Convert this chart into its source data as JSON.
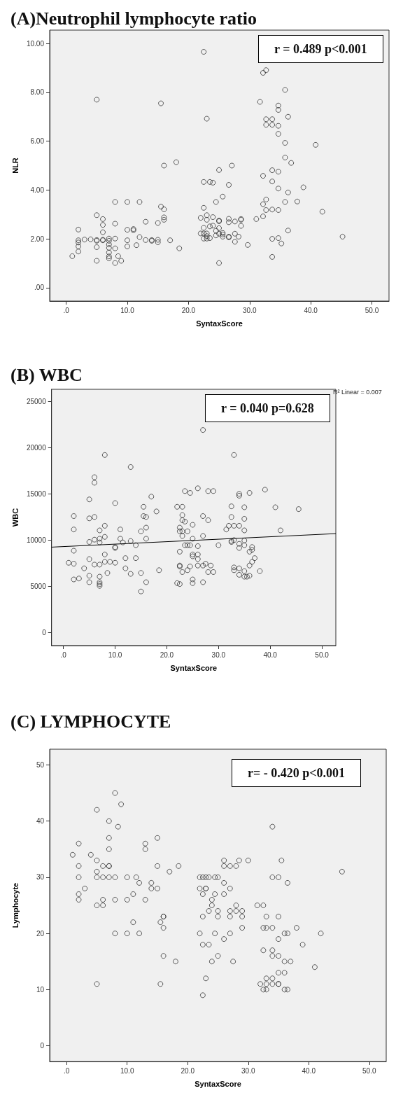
{
  "chart_data": [
    {
      "type": "scatter",
      "title": "(A)Neutrophil lymphocyte ratio",
      "xlabel": "SyntaxScore",
      "ylabel": "NLR",
      "marker": "circle",
      "annotations": [
        "r = 0.489 p<0.001"
      ],
      "xlim": [
        -2.7,
        52.8
      ],
      "ylim": [
        -0.55,
        10.55
      ],
      "xticks": [
        {
          "value": 0,
          "label": ".0"
        },
        {
          "value": 10,
          "label": "10.0"
        },
        {
          "value": 20,
          "label": "20.0"
        },
        {
          "value": 30,
          "label": "30.0"
        },
        {
          "value": 40,
          "label": "40.0"
        },
        {
          "value": 50,
          "label": "50.0"
        }
      ],
      "yticks": [
        {
          "value": 0,
          "label": ".00"
        },
        {
          "value": 2,
          "label": "2.00"
        },
        {
          "value": 4,
          "label": "4.00"
        },
        {
          "value": 6,
          "label": "6.00"
        },
        {
          "value": 8,
          "label": "8.00"
        },
        {
          "value": 10,
          "label": "10.00"
        }
      ],
      "series": [
        {
          "color": "#333333",
          "x": [
            22.5,
            5,
            15.5,
            23,
            18,
            16,
            25,
            22.5,
            23.5,
            24,
            8,
            10,
            12,
            24.5,
            15.5,
            16,
            22.5,
            5,
            22,
            23,
            23,
            24,
            25,
            25,
            6,
            16,
            16,
            13,
            15,
            6,
            8,
            2,
            6,
            10,
            11,
            11,
            22.5,
            23.5,
            24,
            25,
            24.5,
            25,
            22,
            22.5,
            23,
            23,
            22.5,
            23,
            23.5,
            24.5,
            2,
            2,
            2,
            2,
            3,
            4,
            5,
            5,
            6,
            6,
            7,
            7,
            7,
            7,
            7,
            7,
            7,
            8,
            10,
            12,
            13,
            14,
            14,
            15,
            15,
            17,
            5,
            8,
            10,
            11.5,
            18.5,
            1,
            8.5,
            5,
            8,
            9,
            25,
            32.2,
            32.7,
            35.8,
            31.7,
            34.7,
            34.7,
            36.3,
            32.7,
            33.7,
            32.7,
            33.7,
            34.7,
            34.7,
            35.8,
            40.8,
            35.8,
            36.8,
            27.1,
            33.7,
            34.7,
            32.2,
            33.7,
            26.6,
            38.8,
            34.7,
            36.3,
            25.6,
            32.7,
            32.2,
            35.8,
            37.8,
            32.7,
            33.7,
            34.7,
            41.9,
            26.6,
            26.6,
            27.6,
            28.6,
            28.6,
            28.6,
            31.1,
            32.2,
            25.6,
            25.6,
            25.6,
            26.6,
            26.6,
            27.6,
            28.2,
            27.6,
            29.7,
            36.3,
            33.7,
            34.7,
            35.2,
            45.2,
            33.7
          ],
          "values": [
            9.66,
            7.7,
            7.55,
            6.92,
            5.14,
            5.0,
            4.82,
            4.33,
            4.33,
            4.3,
            3.51,
            3.51,
            3.51,
            3.51,
            3.32,
            3.21,
            3.27,
            2.97,
            2.86,
            2.97,
            2.78,
            2.89,
            2.75,
            2.72,
            2.81,
            2.88,
            2.78,
            2.7,
            2.65,
            2.57,
            2.62,
            2.38,
            2.27,
            2.37,
            2.4,
            2.35,
            2.45,
            2.51,
            2.54,
            2.44,
            2.33,
            2.21,
            2.22,
            2.22,
            2.22,
            2.11,
            2.01,
            2.01,
            2.03,
            2.14,
            1.94,
            1.85,
            1.69,
            1.48,
            1.97,
            1.98,
            1.95,
            1.92,
            1.96,
            1.94,
            2.01,
            1.92,
            1.77,
            1.63,
            1.44,
            1.28,
            1.2,
            2.01,
            1.94,
            2.07,
            1.95,
            1.92,
            1.95,
            1.96,
            1.86,
            1.94,
            1.66,
            1.61,
            1.69,
            1.74,
            1.61,
            1.29,
            1.29,
            1.1,
            1.01,
            1.1,
            1.01,
            8.8,
            8.91,
            8.1,
            7.61,
            7.46,
            7.28,
            7.0,
            6.9,
            6.9,
            6.67,
            6.67,
            6.63,
            6.3,
            5.93,
            5.85,
            5.33,
            5.11,
            5.0,
            4.81,
            4.75,
            4.58,
            4.35,
            4.21,
            4.11,
            4.06,
            3.9,
            3.73,
            3.61,
            3.42,
            3.51,
            3.53,
            3.18,
            3.2,
            3.18,
            3.11,
            2.82,
            2.68,
            2.71,
            2.81,
            2.78,
            2.53,
            2.81,
            2.92,
            2.24,
            2.18,
            2.09,
            2.09,
            2.06,
            2.21,
            2.09,
            1.88,
            1.75,
            2.34,
            2.0,
            2.03,
            1.81,
            2.09,
            1.26
          ]
        }
      ]
    },
    {
      "type": "scatter",
      "title": "(B) WBC",
      "xlabel": "SyntaxScore",
      "ylabel": "WBC",
      "marker": "circle",
      "annotations": [
        "r = 0.040 p=0.628",
        "R² Linear = 0.007"
      ],
      "xlim": [
        -2.3,
        52.7
      ],
      "ylim": [
        -1400,
        26300
      ],
      "xticks": [
        {
          "value": 0,
          "label": ".0"
        },
        {
          "value": 10,
          "label": "10.0"
        },
        {
          "value": 20,
          "label": "20.0"
        },
        {
          "value": 30,
          "label": "30.0"
        },
        {
          "value": 40,
          "label": "40.0"
        },
        {
          "value": 50,
          "label": "50.0"
        }
      ],
      "yticks": [
        0,
        5000,
        10000,
        15000,
        20000,
        25000
      ],
      "series": [
        {
          "color": "#333333",
          "x": [
            27,
            8,
            13,
            6,
            6,
            5,
            10,
            17,
            23.5,
            24.5,
            26,
            28,
            29,
            15.5,
            18,
            22,
            23,
            2,
            5,
            6,
            15.5,
            16,
            23,
            23,
            23.5,
            27,
            28,
            2,
            8,
            7,
            11,
            15,
            16,
            22.5,
            22.5,
            23,
            24,
            23,
            25,
            27,
            5,
            6,
            7,
            7,
            8,
            11,
            11.5,
            13,
            16,
            25,
            2,
            10,
            10,
            14,
            23.5,
            24,
            24.5,
            26,
            30,
            22.5,
            25,
            25,
            26,
            26,
            8,
            5,
            12,
            14,
            1,
            2,
            6,
            7,
            8,
            9,
            10,
            4,
            22.5,
            22.5,
            24.5,
            26,
            27,
            27.5,
            28.5,
            24,
            23,
            28,
            29,
            12,
            13,
            15,
            18.5,
            8.5,
            2,
            3,
            5,
            5,
            7,
            7,
            7,
            7,
            16,
            15,
            22,
            22.5,
            25,
            25,
            27,
            33,
            39,
            36,
            34,
            34,
            32.5,
            35,
            41,
            45.5,
            32.5,
            35,
            32,
            33,
            34,
            31.5,
            35,
            42,
            32.5,
            33,
            32.5,
            34,
            35,
            34,
            35,
            36.5,
            36.5,
            36,
            37,
            36.5,
            36,
            33,
            33,
            34,
            35,
            34,
            35,
            35.5,
            36,
            38
          ],
          "values": [
            21900,
            19200,
            17900,
            16800,
            16200,
            14400,
            14000,
            14700,
            15300,
            15100,
            15600,
            15300,
            15300,
            13600,
            13100,
            13600,
            13600,
            12600,
            12350,
            12500,
            12600,
            12500,
            12700,
            12150,
            12000,
            12600,
            12150,
            11150,
            11550,
            11050,
            11150,
            10950,
            11350,
            11350,
            10950,
            10950,
            10950,
            10450,
            11650,
            10450,
            9800,
            10050,
            10150,
            9750,
            10350,
            10150,
            9750,
            9900,
            10150,
            10150,
            8850,
            9250,
            9150,
            9450,
            9450,
            9450,
            9450,
            9350,
            9450,
            8750,
            8450,
            8250,
            8450,
            7950,
            8450,
            7950,
            8050,
            8050,
            7550,
            7450,
            7350,
            7350,
            7650,
            7650,
            7550,
            6950,
            7250,
            7150,
            7150,
            7250,
            7250,
            7450,
            7250,
            6750,
            6550,
            6550,
            6550,
            6950,
            6350,
            6450,
            6750,
            6450,
            5750,
            5850,
            6150,
            5450,
            6050,
            5450,
            5250,
            5050,
            5450,
            4450,
            5350,
            5250,
            5750,
            5350,
            5450,
            19200,
            15450,
            15100,
            15000,
            14800,
            13650,
            13550,
            13550,
            13350,
            12500,
            12300,
            11550,
            11550,
            11550,
            11150,
            11050,
            11050,
            9800,
            10000,
            9900,
            9600,
            9950,
            9150,
            9450,
            9250,
            8950,
            8750,
            8050,
            7650,
            7250,
            7050,
            6750,
            6950,
            6650,
            6250,
            6050,
            6050,
            6150,
            6650
          ]
        },
        {
          "type": "line",
          "marker": "none",
          "color": "#000000",
          "x": [
            -2.3,
            52.7
          ],
          "values": [
            9240,
            10700
          ]
        }
      ]
    },
    {
      "type": "scatter",
      "title": "(C) LYMPHOCYTE",
      "xlabel": "SyntaxScore",
      "ylabel": "Lymphocyte",
      "marker": "circle",
      "annotations": [
        "r= - 0.420 p<0.001"
      ],
      "xlim": [
        -2.8,
        52.8
      ],
      "ylim": [
        -2.8,
        52.8
      ],
      "xticks": [
        {
          "value": 0,
          "label": ".0"
        },
        {
          "value": 10,
          "label": "10.0"
        },
        {
          "value": 20,
          "label": "20.0"
        },
        {
          "value": 30,
          "label": "30.0"
        },
        {
          "value": 40,
          "label": "40.0"
        },
        {
          "value": 50,
          "label": "50.0"
        }
      ],
      "yticks": [
        0,
        10,
        20,
        30,
        40,
        50
      ],
      "series": [
        {
          "color": "#333333",
          "x": [
            8,
            9,
            5,
            7,
            8.5,
            7,
            15,
            2,
            13,
            7,
            13,
            1,
            4,
            5,
            2,
            6,
            7,
            7,
            15,
            18.5,
            5,
            17,
            2,
            5,
            6,
            7,
            8,
            10,
            11.5,
            12,
            14,
            14,
            15,
            3,
            2,
            2,
            11,
            6,
            8,
            10,
            13,
            5,
            6,
            16,
            16,
            11,
            15.5,
            16,
            8,
            10,
            12,
            16,
            18,
            5,
            15.5,
            22,
            22.5,
            23,
            23.5,
            24.5,
            25,
            23,
            23,
            22,
            22.5,
            24.5,
            24,
            24,
            23.5,
            25,
            25,
            22.5,
            22,
            24.5,
            22.5,
            23.5,
            25,
            24,
            23,
            22.5,
            26,
            26,
            27,
            28,
            28.5,
            30,
            26,
            27,
            26,
            27,
            27,
            28,
            28,
            29,
            29,
            31.5,
            32.5,
            33,
            35,
            27,
            29,
            32.5,
            33,
            34,
            38,
            36,
            36.5,
            42,
            26,
            35,
            39,
            32.5,
            34,
            34,
            35,
            27.5,
            36,
            37,
            41,
            35,
            36,
            33,
            34,
            32,
            33,
            34,
            35,
            35,
            32.5,
            33,
            36,
            36.5,
            34,
            35.5,
            34,
            35,
            36.5,
            45.5
          ],
          "values": [
            45,
            43,
            42,
            40,
            39,
            37,
            37,
            36,
            36,
            35,
            35,
            34,
            34,
            33,
            32,
            32,
            32,
            32,
            32,
            32,
            31,
            31,
            30,
            30,
            30,
            30,
            30,
            30,
            30,
            29,
            29,
            28,
            28,
            28,
            27,
            26,
            27,
            26,
            26,
            26,
            26,
            25,
            25,
            23,
            23,
            22,
            22,
            21,
            20,
            20,
            20,
            16,
            15,
            11,
            11,
            30,
            30,
            30,
            30,
            30,
            30,
            28,
            28,
            28,
            27,
            27,
            26,
            25,
            24,
            24,
            23,
            23,
            20,
            20,
            18,
            18,
            16,
            15,
            12,
            9,
            33,
            32,
            32,
            32,
            33,
            33,
            29,
            28,
            27,
            24,
            23,
            25,
            24,
            24,
            23,
            25,
            25,
            23,
            23,
            20,
            21,
            21,
            21,
            21,
            21,
            20,
            20,
            20,
            19,
            19,
            18,
            17,
            17,
            16,
            16,
            15,
            15,
            15,
            14,
            13,
            13,
            12,
            12,
            11,
            11,
            11,
            11,
            11,
            10,
            10,
            10,
            10,
            39,
            33,
            30,
            30,
            29,
            31
          ]
        }
      ]
    }
  ]
}
